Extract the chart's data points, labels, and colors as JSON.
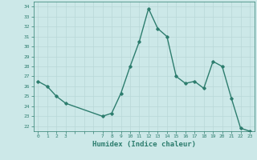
{
  "xlabel": "Humidex (Indice chaleur)",
  "x": [
    0,
    1,
    2,
    3,
    7,
    8,
    9,
    10,
    11,
    12,
    13,
    14,
    15,
    16,
    17,
    18,
    19,
    20,
    21,
    22,
    23
  ],
  "y": [
    26.5,
    26.0,
    25.0,
    24.3,
    23.0,
    23.3,
    25.3,
    28.0,
    30.5,
    33.8,
    31.8,
    31.0,
    27.0,
    26.3,
    26.5,
    25.8,
    28.5,
    28.0,
    24.8,
    21.8,
    21.5
  ],
  "xlim": [
    -0.5,
    23.5
  ],
  "ylim": [
    21.5,
    34.5
  ],
  "yticks": [
    22,
    23,
    24,
    25,
    26,
    27,
    28,
    29,
    30,
    31,
    32,
    33,
    34
  ],
  "xticks": [
    0,
    1,
    2,
    3,
    7,
    8,
    9,
    10,
    11,
    12,
    13,
    14,
    15,
    16,
    17,
    18,
    19,
    20,
    21,
    22,
    23
  ],
  "all_xticks": [
    0,
    1,
    2,
    3,
    4,
    5,
    6,
    7,
    8,
    9,
    10,
    11,
    12,
    13,
    14,
    15,
    16,
    17,
    18,
    19,
    20,
    21,
    22,
    23
  ],
  "line_color": "#2d7d6e",
  "marker": "D",
  "marker_size": 1.8,
  "bg_color": "#cce8e8",
  "grid_color": "#b8d8d8",
  "tick_color": "#2d7d6e",
  "label_color": "#2d7d6e",
  "line_width": 1.0
}
